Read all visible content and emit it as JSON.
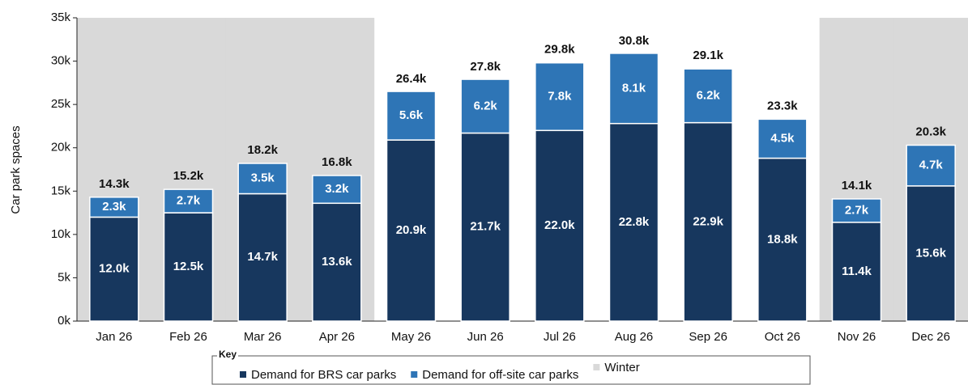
{
  "chart_data": {
    "type": "stacked_bar",
    "y_label": "Car park spaces",
    "categories": [
      "Jan 26",
      "Feb 26",
      "Mar 26",
      "Apr 26",
      "May 26",
      "Jun 26",
      "Jul 26",
      "Aug 26",
      "Sep 26",
      "Oct 26",
      "Nov 26",
      "Dec 26"
    ],
    "series": [
      {
        "name": "Demand for BRS car parks",
        "color": "#17375e",
        "values": [
          12000,
          12500,
          14700,
          13600,
          20900,
          21700,
          22000,
          22800,
          22900,
          18800,
          11400,
          15600
        ],
        "value_labels": [
          "12.0k",
          "12.5k",
          "14.7k",
          "13.6k",
          "20.9k",
          "21.7k",
          "22.0k",
          "22.8k",
          "22.9k",
          "18.8k",
          "11.4k",
          "15.6k"
        ]
      },
      {
        "name": "Demand for off-site car parks",
        "color": "#2e75b6",
        "values": [
          2300,
          2700,
          3500,
          3200,
          5600,
          6200,
          7800,
          8100,
          6200,
          4500,
          2700,
          4700
        ],
        "value_labels": [
          "2.3k",
          "2.7k",
          "3.5k",
          "3.2k",
          "5.6k",
          "6.2k",
          "7.8k",
          "8.1k",
          "6.2k",
          "4.5k",
          "2.7k",
          "4.7k"
        ]
      }
    ],
    "totals": [
      14300,
      15200,
      18200,
      16800,
      26400,
      27800,
      29800,
      30800,
      29100,
      23300,
      14100,
      20300
    ],
    "total_labels": [
      "14.3k",
      "15.2k",
      "18.2k",
      "16.8k",
      "26.4k",
      "27.8k",
      "29.8k",
      "30.8k",
      "29.1k",
      "23.3k",
      "14.1k",
      "20.3k"
    ],
    "shaded": {
      "name": "Winter",
      "color": "#d9d9d9",
      "categories": [
        "Jan 26",
        "Feb 26",
        "Mar 26",
        "Apr 26",
        "Nov 26",
        "Dec 26"
      ]
    },
    "legend_title": "Key",
    "ylim": [
      0,
      35000
    ],
    "yticks": [
      {
        "value": 0,
        "label": "0k"
      },
      {
        "value": 5000,
        "label": "5k"
      },
      {
        "value": 10000,
        "label": "10k"
      },
      {
        "value": 15000,
        "label": "15k"
      },
      {
        "value": 20000,
        "label": "20k"
      },
      {
        "value": 25000,
        "label": "25k"
      },
      {
        "value": 30000,
        "label": "30k"
      },
      {
        "value": 35000,
        "label": "35k"
      }
    ]
  }
}
